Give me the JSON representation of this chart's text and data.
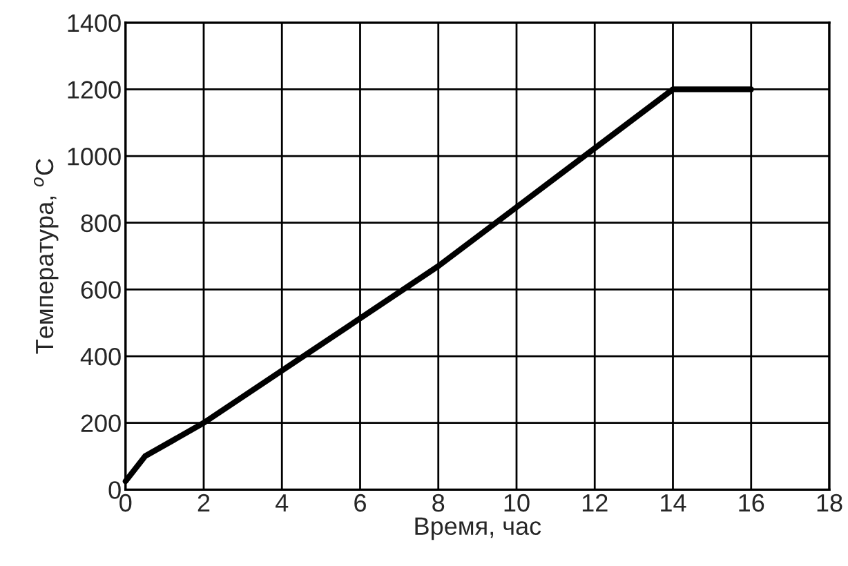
{
  "chart_data": {
    "type": "line",
    "xlabel": "Время, час",
    "ylabel": "Температура, $^{o}$C",
    "x": [
      0,
      0.5,
      2,
      8,
      14,
      16
    ],
    "series": [
      {
        "color": "#000000",
        "values": [
          25,
          100,
          200,
          670,
          1200,
          1200
        ]
      }
    ],
    "xlim": [
      0,
      18
    ],
    "xticks": [
      0,
      2,
      4,
      6,
      8,
      10,
      12,
      14,
      16,
      18
    ],
    "ylim": [
      0,
      1400
    ],
    "yticks": [
      0,
      200,
      400,
      600,
      800,
      1000,
      1200,
      1400
    ],
    "grid": true
  }
}
